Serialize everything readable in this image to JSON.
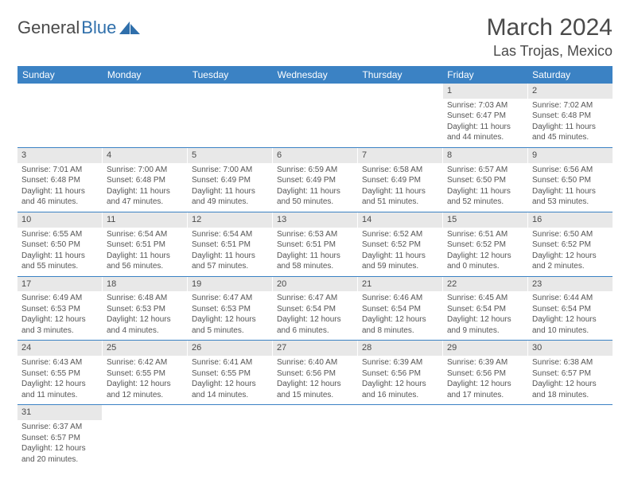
{
  "logo": {
    "text1": "General",
    "text2": "Blue"
  },
  "title": "March 2024",
  "location": "Las Trojas, Mexico",
  "colors": {
    "header_bg": "#3b82c4",
    "header_text": "#ffffff",
    "row_border": "#3b82c4",
    "daynum_bg": "#e8e8e8",
    "text": "#555555",
    "logo_blue": "#2f6fab"
  },
  "weekdays": [
    "Sunday",
    "Monday",
    "Tuesday",
    "Wednesday",
    "Thursday",
    "Friday",
    "Saturday"
  ],
  "weeks": [
    [
      {
        "n": "",
        "empty": true
      },
      {
        "n": "",
        "empty": true
      },
      {
        "n": "",
        "empty": true
      },
      {
        "n": "",
        "empty": true
      },
      {
        "n": "",
        "empty": true
      },
      {
        "n": "1",
        "sunrise": "Sunrise: 7:03 AM",
        "sunset": "Sunset: 6:47 PM",
        "daylight1": "Daylight: 11 hours",
        "daylight2": "and 44 minutes."
      },
      {
        "n": "2",
        "sunrise": "Sunrise: 7:02 AM",
        "sunset": "Sunset: 6:48 PM",
        "daylight1": "Daylight: 11 hours",
        "daylight2": "and 45 minutes."
      }
    ],
    [
      {
        "n": "3",
        "sunrise": "Sunrise: 7:01 AM",
        "sunset": "Sunset: 6:48 PM",
        "daylight1": "Daylight: 11 hours",
        "daylight2": "and 46 minutes."
      },
      {
        "n": "4",
        "sunrise": "Sunrise: 7:00 AM",
        "sunset": "Sunset: 6:48 PM",
        "daylight1": "Daylight: 11 hours",
        "daylight2": "and 47 minutes."
      },
      {
        "n": "5",
        "sunrise": "Sunrise: 7:00 AM",
        "sunset": "Sunset: 6:49 PM",
        "daylight1": "Daylight: 11 hours",
        "daylight2": "and 49 minutes."
      },
      {
        "n": "6",
        "sunrise": "Sunrise: 6:59 AM",
        "sunset": "Sunset: 6:49 PM",
        "daylight1": "Daylight: 11 hours",
        "daylight2": "and 50 minutes."
      },
      {
        "n": "7",
        "sunrise": "Sunrise: 6:58 AM",
        "sunset": "Sunset: 6:49 PM",
        "daylight1": "Daylight: 11 hours",
        "daylight2": "and 51 minutes."
      },
      {
        "n": "8",
        "sunrise": "Sunrise: 6:57 AM",
        "sunset": "Sunset: 6:50 PM",
        "daylight1": "Daylight: 11 hours",
        "daylight2": "and 52 minutes."
      },
      {
        "n": "9",
        "sunrise": "Sunrise: 6:56 AM",
        "sunset": "Sunset: 6:50 PM",
        "daylight1": "Daylight: 11 hours",
        "daylight2": "and 53 minutes."
      }
    ],
    [
      {
        "n": "10",
        "sunrise": "Sunrise: 6:55 AM",
        "sunset": "Sunset: 6:50 PM",
        "daylight1": "Daylight: 11 hours",
        "daylight2": "and 55 minutes."
      },
      {
        "n": "11",
        "sunrise": "Sunrise: 6:54 AM",
        "sunset": "Sunset: 6:51 PM",
        "daylight1": "Daylight: 11 hours",
        "daylight2": "and 56 minutes."
      },
      {
        "n": "12",
        "sunrise": "Sunrise: 6:54 AM",
        "sunset": "Sunset: 6:51 PM",
        "daylight1": "Daylight: 11 hours",
        "daylight2": "and 57 minutes."
      },
      {
        "n": "13",
        "sunrise": "Sunrise: 6:53 AM",
        "sunset": "Sunset: 6:51 PM",
        "daylight1": "Daylight: 11 hours",
        "daylight2": "and 58 minutes."
      },
      {
        "n": "14",
        "sunrise": "Sunrise: 6:52 AM",
        "sunset": "Sunset: 6:52 PM",
        "daylight1": "Daylight: 11 hours",
        "daylight2": "and 59 minutes."
      },
      {
        "n": "15",
        "sunrise": "Sunrise: 6:51 AM",
        "sunset": "Sunset: 6:52 PM",
        "daylight1": "Daylight: 12 hours",
        "daylight2": "and 0 minutes."
      },
      {
        "n": "16",
        "sunrise": "Sunrise: 6:50 AM",
        "sunset": "Sunset: 6:52 PM",
        "daylight1": "Daylight: 12 hours",
        "daylight2": "and 2 minutes."
      }
    ],
    [
      {
        "n": "17",
        "sunrise": "Sunrise: 6:49 AM",
        "sunset": "Sunset: 6:53 PM",
        "daylight1": "Daylight: 12 hours",
        "daylight2": "and 3 minutes."
      },
      {
        "n": "18",
        "sunrise": "Sunrise: 6:48 AM",
        "sunset": "Sunset: 6:53 PM",
        "daylight1": "Daylight: 12 hours",
        "daylight2": "and 4 minutes."
      },
      {
        "n": "19",
        "sunrise": "Sunrise: 6:47 AM",
        "sunset": "Sunset: 6:53 PM",
        "daylight1": "Daylight: 12 hours",
        "daylight2": "and 5 minutes."
      },
      {
        "n": "20",
        "sunrise": "Sunrise: 6:47 AM",
        "sunset": "Sunset: 6:54 PM",
        "daylight1": "Daylight: 12 hours",
        "daylight2": "and 6 minutes."
      },
      {
        "n": "21",
        "sunrise": "Sunrise: 6:46 AM",
        "sunset": "Sunset: 6:54 PM",
        "daylight1": "Daylight: 12 hours",
        "daylight2": "and 8 minutes."
      },
      {
        "n": "22",
        "sunrise": "Sunrise: 6:45 AM",
        "sunset": "Sunset: 6:54 PM",
        "daylight1": "Daylight: 12 hours",
        "daylight2": "and 9 minutes."
      },
      {
        "n": "23",
        "sunrise": "Sunrise: 6:44 AM",
        "sunset": "Sunset: 6:54 PM",
        "daylight1": "Daylight: 12 hours",
        "daylight2": "and 10 minutes."
      }
    ],
    [
      {
        "n": "24",
        "sunrise": "Sunrise: 6:43 AM",
        "sunset": "Sunset: 6:55 PM",
        "daylight1": "Daylight: 12 hours",
        "daylight2": "and 11 minutes."
      },
      {
        "n": "25",
        "sunrise": "Sunrise: 6:42 AM",
        "sunset": "Sunset: 6:55 PM",
        "daylight1": "Daylight: 12 hours",
        "daylight2": "and 12 minutes."
      },
      {
        "n": "26",
        "sunrise": "Sunrise: 6:41 AM",
        "sunset": "Sunset: 6:55 PM",
        "daylight1": "Daylight: 12 hours",
        "daylight2": "and 14 minutes."
      },
      {
        "n": "27",
        "sunrise": "Sunrise: 6:40 AM",
        "sunset": "Sunset: 6:56 PM",
        "daylight1": "Daylight: 12 hours",
        "daylight2": "and 15 minutes."
      },
      {
        "n": "28",
        "sunrise": "Sunrise: 6:39 AM",
        "sunset": "Sunset: 6:56 PM",
        "daylight1": "Daylight: 12 hours",
        "daylight2": "and 16 minutes."
      },
      {
        "n": "29",
        "sunrise": "Sunrise: 6:39 AM",
        "sunset": "Sunset: 6:56 PM",
        "daylight1": "Daylight: 12 hours",
        "daylight2": "and 17 minutes."
      },
      {
        "n": "30",
        "sunrise": "Sunrise: 6:38 AM",
        "sunset": "Sunset: 6:57 PM",
        "daylight1": "Daylight: 12 hours",
        "daylight2": "and 18 minutes."
      }
    ],
    [
      {
        "n": "31",
        "sunrise": "Sunrise: 6:37 AM",
        "sunset": "Sunset: 6:57 PM",
        "daylight1": "Daylight: 12 hours",
        "daylight2": "and 20 minutes."
      },
      {
        "n": "",
        "empty": true
      },
      {
        "n": "",
        "empty": true
      },
      {
        "n": "",
        "empty": true
      },
      {
        "n": "",
        "empty": true
      },
      {
        "n": "",
        "empty": true
      },
      {
        "n": "",
        "empty": true
      }
    ]
  ]
}
